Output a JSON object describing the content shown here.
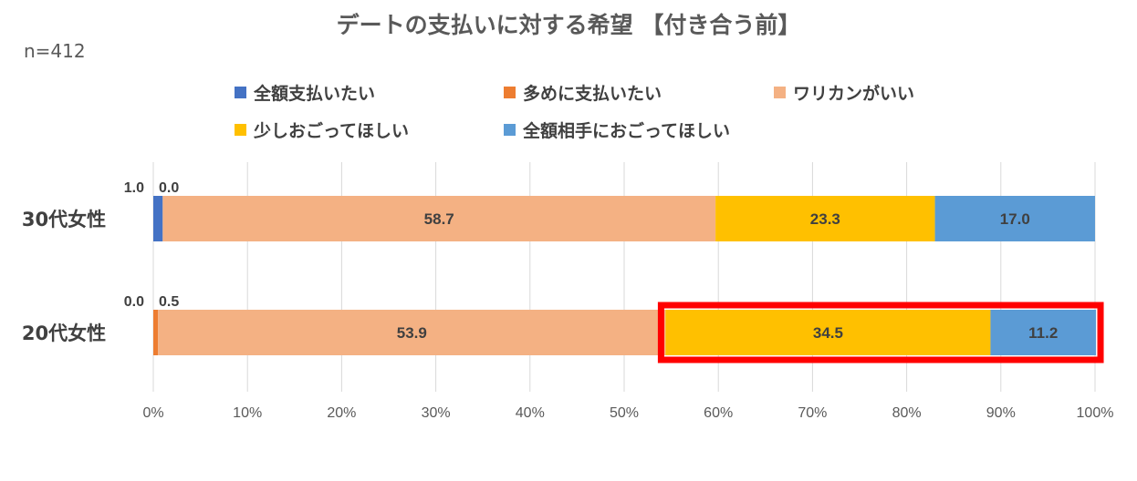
{
  "chart_data": {
    "type": "bar",
    "orientation": "horizontal",
    "stacked": "percent",
    "title": "デートの支払いに対する希望 【付き合う前】",
    "note": "n=412",
    "categories": [
      "30代女性",
      "20代女性"
    ],
    "series": [
      {
        "name": "全額支払いたい",
        "color": "#4472C4",
        "values": [
          1.0,
          0.0
        ]
      },
      {
        "name": "多めに支払いたい",
        "color": "#ED7D31",
        "values": [
          0.0,
          0.5
        ]
      },
      {
        "name": "ワリカンがいい",
        "color": "#F4B183",
        "values": [
          58.7,
          53.9
        ]
      },
      {
        "name": "少しおごってほしい",
        "color": "#FFC000",
        "values": [
          23.3,
          34.5
        ]
      },
      {
        "name": "全額相手におごってほしい",
        "color": "#5B9BD5",
        "values": [
          17.0,
          11.2
        ]
      }
    ],
    "data_labels": [
      [
        "1.0",
        "0.0",
        "58.7",
        "23.3",
        "17.0"
      ],
      [
        "0.0",
        "0.5",
        "53.9",
        "34.5",
        "11.2"
      ]
    ],
    "xticks": [
      "0%",
      "10%",
      "20%",
      "30%",
      "40%",
      "50%",
      "60%",
      "70%",
      "80%",
      "90%",
      "100%"
    ],
    "xlim": [
      0,
      100
    ],
    "grid": true,
    "legend_position": "top",
    "highlight": {
      "category": "20代女性",
      "series": [
        "少しおごってほしい",
        "全額相手におごってほしい"
      ],
      "color": "#FF0000"
    }
  }
}
